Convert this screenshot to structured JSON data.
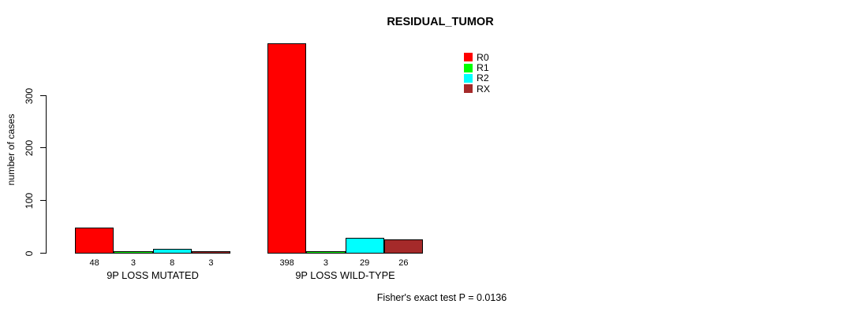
{
  "figure": {
    "background": "#FFFFFF",
    "text_color": "#000000"
  },
  "chart_data": {
    "type": "bar",
    "title": "RESIDUAL_TUMOR",
    "ylabel": "number of cases",
    "xlabel": "",
    "yticks": [
      0,
      100,
      200,
      300
    ],
    "ylim": [
      0,
      420
    ],
    "grid": false,
    "legend_position": "top-right",
    "bar_value_labels_shown": true,
    "categories": [
      "9P LOSS MUTATED",
      "9P LOSS WILD-TYPE"
    ],
    "series": [
      {
        "name": "R0",
        "color": "#FF0000",
        "values": [
          48,
          398
        ]
      },
      {
        "name": "R1",
        "color": "#00FF00",
        "values": [
          3,
          3
        ]
      },
      {
        "name": "R2",
        "color": "#00FFFF",
        "values": [
          8,
          29
        ]
      },
      {
        "name": "RX",
        "color": "#A52A2A",
        "values": [
          3,
          26
        ]
      }
    ],
    "annotation": "Fisher's exact test P = 0.0136"
  }
}
